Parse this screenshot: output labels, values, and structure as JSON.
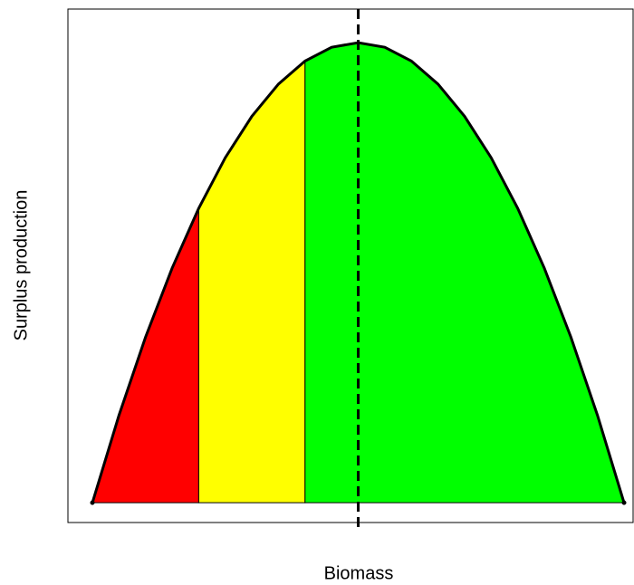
{
  "chart_data": {
    "type": "area",
    "x_label": "Biomass",
    "y_label": "Surplus production",
    "x": [
      0,
      0.05,
      0.1,
      0.15,
      0.2,
      0.25,
      0.3,
      0.35,
      0.4,
      0.45,
      0.5,
      0.55,
      0.6,
      0.65,
      0.7,
      0.75,
      0.8,
      0.85,
      0.9,
      0.95,
      1
    ],
    "values": [
      0,
      0.19,
      0.36,
      0.51,
      0.64,
      0.75,
      0.84,
      0.91,
      0.96,
      0.99,
      1,
      0.99,
      0.96,
      0.91,
      0.84,
      0.75,
      0.64,
      0.51,
      0.36,
      0.19,
      0
    ],
    "zones": [
      {
        "color": "#ff0000",
        "x_range": [
          0,
          0.2
        ]
      },
      {
        "color": "#ffff00",
        "x_range": [
          0.2,
          0.4
        ]
      },
      {
        "color": "#00ff00",
        "x_range": [
          0.4,
          1
        ]
      }
    ],
    "reference_x": 0.5,
    "line_color": "#000000",
    "xlim": [
      -0.046,
      1.017
    ],
    "ylim": [
      -0.043,
      1.073
    ]
  }
}
